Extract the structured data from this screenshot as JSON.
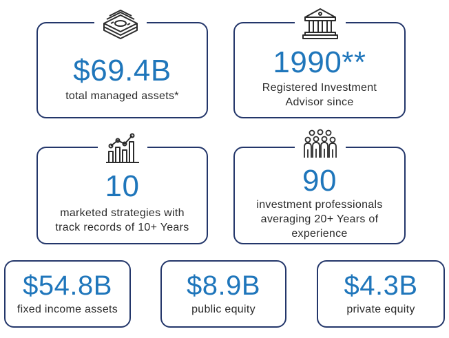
{
  "stats": [
    {
      "value": "$69.4B",
      "label": "total managed assets*"
    },
    {
      "value": "1990**",
      "label_line1": "Registered Investment",
      "label_line2": "Advisor since"
    },
    {
      "value": "10",
      "label_line1": "marketed strategies with",
      "label_line2": "track records of 10+ Years"
    },
    {
      "value": "90",
      "label_line1": "investment professionals",
      "label_line2": "averaging 20+ Years of",
      "label_line3": "experience"
    },
    {
      "value": "$54.8B",
      "label": "fixed income assets"
    },
    {
      "value": "$8.9B",
      "label": "public equity"
    },
    {
      "value": "$4.3B",
      "label": "private equity"
    }
  ],
  "icons": [
    "money-stack-icon",
    "bank-building-icon",
    "growth-chart-icon",
    "team-people-icon"
  ],
  "colors": {
    "border": "#23366a",
    "value": "#1f76bb",
    "text": "#2a2a2a",
    "icon": "#2b2b2b"
  }
}
